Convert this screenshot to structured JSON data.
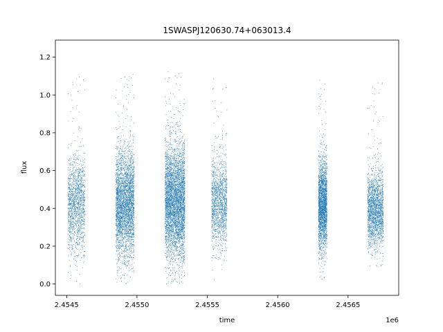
{
  "chart_data": {
    "type": "scatter",
    "title": "1SWASPJ120630.74+063013.4",
    "xlabel": "time",
    "ylabel": "flux",
    "x_offset_label": "1e6",
    "xlim": [
      2454420,
      2456860
    ],
    "ylim": [
      -0.06,
      1.29
    ],
    "x_ticks": [
      2454500,
      2455000,
      2455500,
      2456000,
      2456500
    ],
    "x_tick_labels": [
      "2.4545",
      "2.4550",
      "2.4555",
      "2.4560",
      "2.4565"
    ],
    "y_ticks": [
      0.0,
      0.2,
      0.4,
      0.6,
      0.8,
      1.0,
      1.2
    ],
    "y_tick_labels": [
      "0.0",
      "0.2",
      "0.4",
      "0.6",
      "0.8",
      "1.0",
      "1.2"
    ],
    "grid": false,
    "marker_color": "#1f77b4",
    "observing_seasons": [
      {
        "x_start": 2454510,
        "x_end": 2454630,
        "approx_points": 1500,
        "flux_center": 0.42,
        "flux_spread": 0.13
      },
      {
        "x_start": 2454850,
        "x_end": 2454980,
        "approx_points": 3500,
        "flux_center": 0.42,
        "flux_spread": 0.14
      },
      {
        "x_start": 2455200,
        "x_end": 2455340,
        "approx_points": 4500,
        "flux_center": 0.43,
        "flux_spread": 0.15
      },
      {
        "x_start": 2455530,
        "x_end": 2455640,
        "approx_points": 1500,
        "flux_center": 0.42,
        "flux_spread": 0.12
      },
      {
        "x_start": 2456290,
        "x_end": 2456350,
        "approx_points": 2500,
        "flux_center": 0.41,
        "flux_spread": 0.12
      },
      {
        "x_start": 2456640,
        "x_end": 2456750,
        "approx_points": 2000,
        "flux_center": 0.39,
        "flux_spread": 0.1
      }
    ]
  }
}
